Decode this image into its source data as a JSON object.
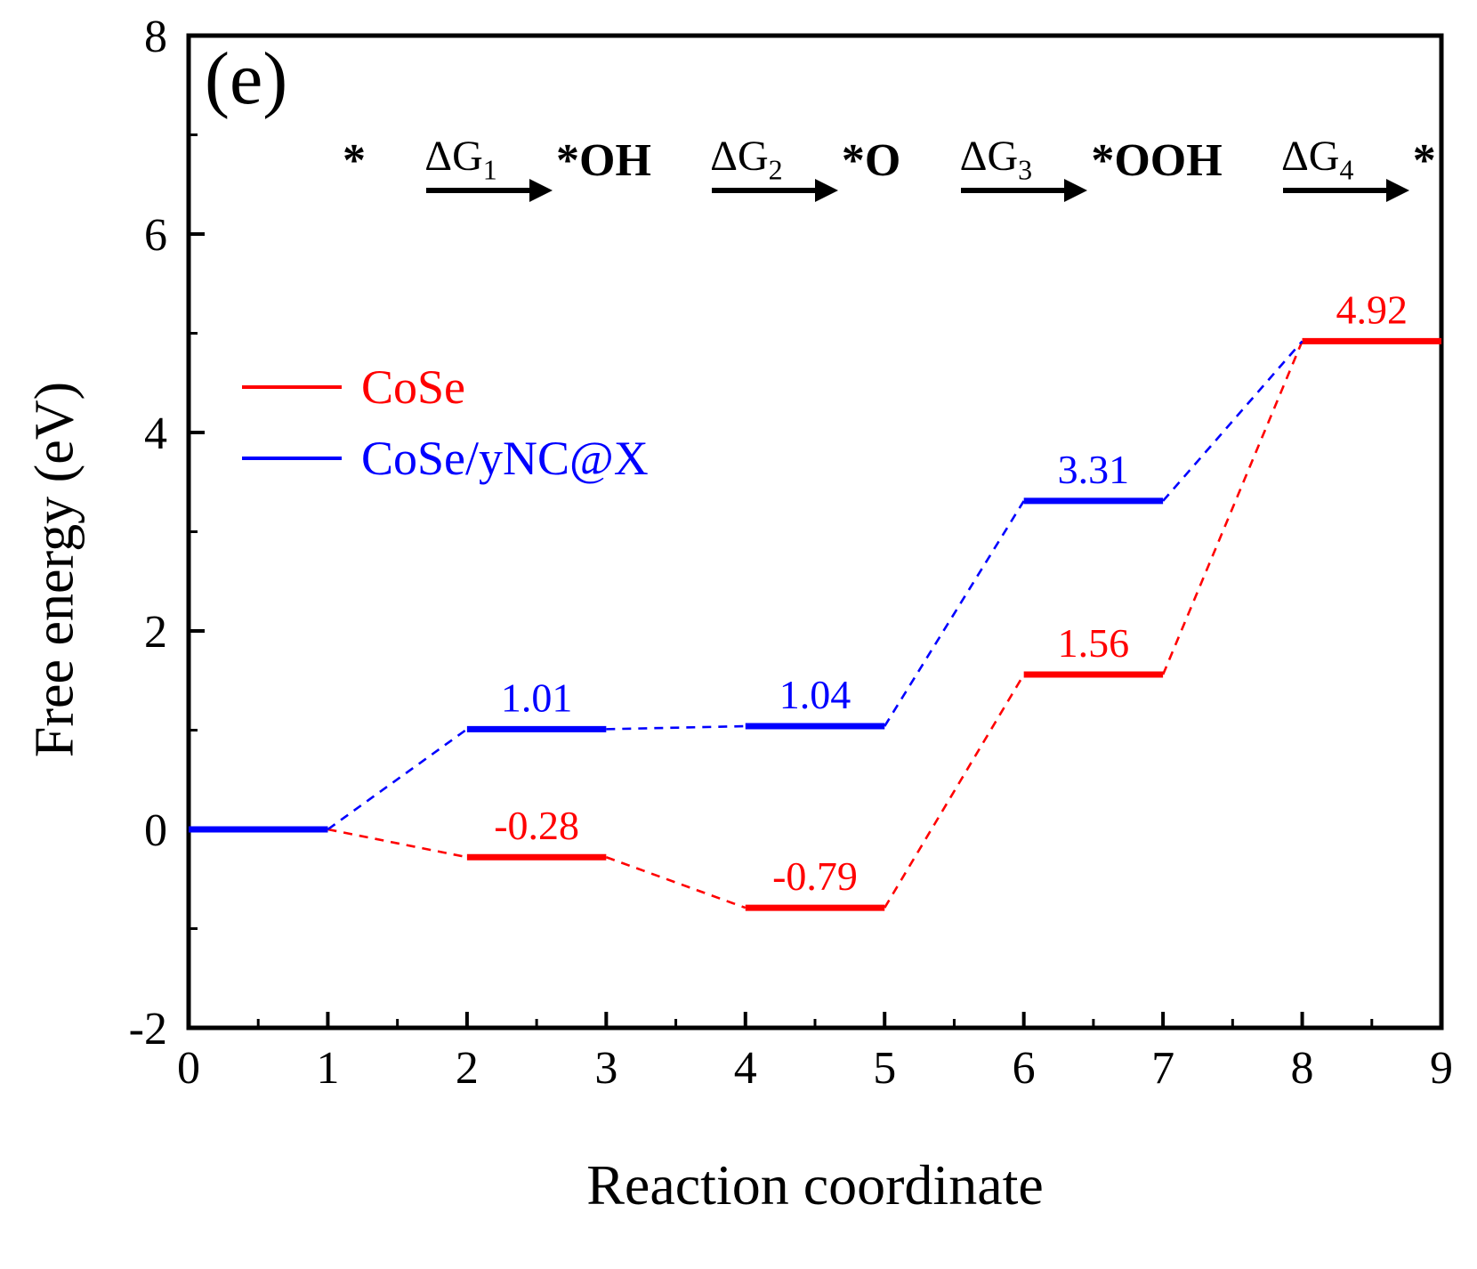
{
  "chart_data": {
    "type": "line",
    "subtype": "free-energy-step-diagram",
    "panel_label": "(e)",
    "xlabel": "Reaction coordinate",
    "ylabel": "Free energy (eV)",
    "xlim": [
      0,
      9
    ],
    "ylim": [
      -2,
      8
    ],
    "xticks": [
      0,
      1,
      2,
      3,
      4,
      5,
      6,
      7,
      8,
      9
    ],
    "yticks": [
      -2,
      0,
      2,
      4,
      6,
      8
    ],
    "grid": false,
    "legend_position": "upper-left-inside",
    "series": [
      {
        "name": "CoSe",
        "color": "#ff0000",
        "levels": [
          {
            "x1": 0,
            "x2": 1,
            "y": 0,
            "label": null
          },
          {
            "x1": 2,
            "x2": 3,
            "y": -0.28,
            "label": "-0.28"
          },
          {
            "x1": 4,
            "x2": 5,
            "y": -0.79,
            "label": "-0.79"
          },
          {
            "x1": 6,
            "x2": 7,
            "y": 1.56,
            "label": "1.56"
          },
          {
            "x1": 8,
            "x2": 9,
            "y": 4.92,
            "label": "4.92"
          }
        ]
      },
      {
        "name": "CoSe/yNC@X",
        "color": "#0000ff",
        "levels": [
          {
            "x1": 0,
            "x2": 1,
            "y": 0,
            "label": null
          },
          {
            "x1": 2,
            "x2": 3,
            "y": 1.01,
            "label": "1.01"
          },
          {
            "x1": 4,
            "x2": 5,
            "y": 1.04,
            "label": "1.04"
          },
          {
            "x1": 6,
            "x2": 7,
            "y": 3.31,
            "label": "3.31"
          },
          {
            "x1": 8,
            "x2": 8,
            "y": 4.92,
            "label": null,
            "plateau": false
          }
        ]
      }
    ],
    "legend": [
      {
        "label": "CoSe",
        "color": "#ff0000"
      },
      {
        "label": "CoSe/yNC@X",
        "color": "#0000ff"
      }
    ],
    "reaction_scheme": {
      "species": [
        "*",
        "*OH",
        "*O",
        "*OOH",
        "*"
      ],
      "steps": [
        {
          "base": "ΔG",
          "sub": "1"
        },
        {
          "base": "ΔG",
          "sub": "2"
        },
        {
          "base": "ΔG",
          "sub": "3"
        },
        {
          "base": "ΔG",
          "sub": "4"
        }
      ]
    },
    "colors": {
      "axis": "#000000",
      "cose": "#ff0000",
      "cose_ync": "#0000ff"
    }
  }
}
